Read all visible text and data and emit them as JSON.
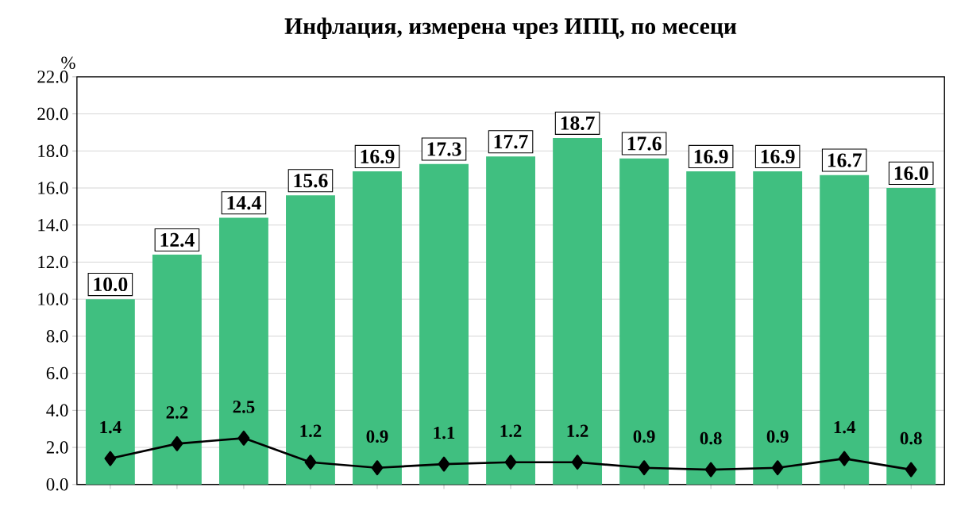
{
  "chart_data": {
    "type": "bar",
    "title": "Инфлация, измерена чрез ИПЦ, по месеци",
    "ylabel": "%",
    "categories": [
      null,
      null,
      null,
      null,
      null,
      null,
      null,
      null,
      null,
      null,
      null,
      null,
      null
    ],
    "series": [
      {
        "color": "#40bf80",
        "values": [
          10.0,
          12.4,
          14.4,
          15.6,
          16.9,
          17.3,
          17.7,
          18.7,
          17.6,
          16.9,
          16.9,
          16.7,
          16.0
        ],
        "value_labels": [
          "10.0",
          "12.4",
          "14.4",
          "15.6",
          "16.9",
          "17.3",
          "17.7",
          "18.7",
          "17.6",
          "16.9",
          "16.9",
          "16.7",
          "16.0"
        ]
      },
      {
        "type": "line",
        "color": "#000000",
        "marker": "diamond",
        "values": [
          1.4,
          2.2,
          2.5,
          1.2,
          0.9,
          1.1,
          1.2,
          1.2,
          0.9,
          0.8,
          0.9,
          1.4,
          0.8
        ],
        "value_labels": [
          "1.4",
          "2.2",
          "2.5",
          "1.2",
          "0.9",
          "1.1",
          "1.2",
          "1.2",
          "0.9",
          "0.8",
          "0.9",
          "1.4",
          "0.8"
        ]
      }
    ],
    "ylim": [
      0,
      22
    ],
    "yticks": [
      {
        "value": 0,
        "label": "0.0"
      },
      {
        "value": 2,
        "label": "2.0"
      },
      {
        "value": 4,
        "label": "4.0"
      },
      {
        "value": 6,
        "label": "6.0"
      },
      {
        "value": 8,
        "label": "8.0"
      },
      {
        "value": 10,
        "label": "10.0"
      },
      {
        "value": 12,
        "label": "12.0"
      },
      {
        "value": 14,
        "label": "14.0"
      },
      {
        "value": 16,
        "label": "16.0"
      },
      {
        "value": 18,
        "label": "18.0"
      },
      {
        "value": 20,
        "label": "20.0"
      },
      {
        "value": 22,
        "label": "22.0"
      }
    ],
    "grid": "y"
  }
}
